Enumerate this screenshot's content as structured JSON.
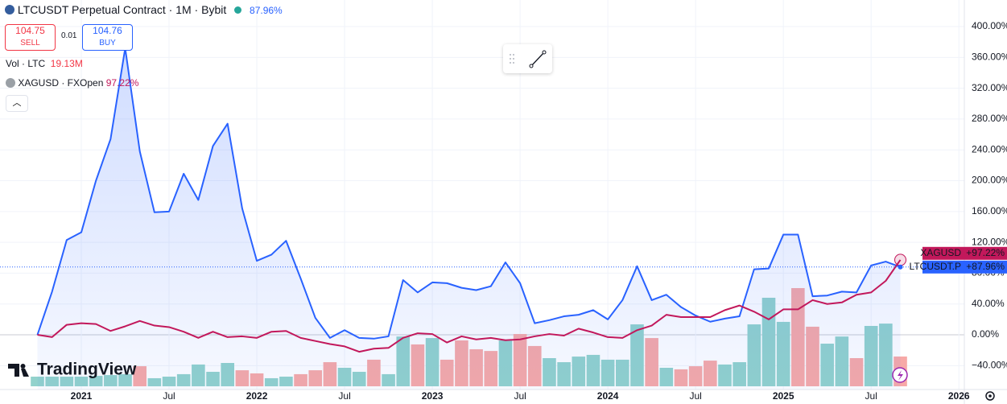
{
  "header": {
    "title": "LTCUSDT Perpetual Contract · 1M · Bybit",
    "change": "87.96%",
    "sell_price": "104.75",
    "sell": "SELL",
    "spread": "0.01",
    "buy_price": "104.76",
    "buy": "BUY",
    "volume_label": "Vol · LTC",
    "compare": "XAGUSD · FXOpen",
    "compare_change": "97.22%",
    "logo": "TradingView"
  },
  "chart_data": {
    "type": "line",
    "categories": [
      null,
      null,
      null,
      "2021",
      null,
      null,
      null,
      null,
      null,
      "Jul",
      null,
      null,
      null,
      null,
      null,
      "2022",
      null,
      null,
      null,
      null,
      null,
      "Jul",
      null,
      null,
      null,
      null,
      null,
      "2023",
      null,
      null,
      null,
      null,
      null,
      "Jul",
      null,
      null,
      null,
      null,
      null,
      "2024",
      null,
      null,
      null,
      null,
      null,
      "Jul",
      null,
      null,
      null,
      null,
      null,
      "2025",
      null,
      null,
      null,
      null,
      null,
      "Jul",
      null,
      null,
      null,
      null,
      null,
      "2026"
    ],
    "series": [
      {
        "name": "LTCUSDT.P",
        "color": "#2962ff",
        "area": true,
        "last_label": "+87.96%",
        "values": [
          0,
          56,
          123,
          133,
          200,
          254,
          372,
          238,
          159,
          160,
          209,
          175,
          245,
          274,
          164,
          96,
          104,
          122,
          73,
          22,
          -4,
          6,
          -4,
          -5,
          -2,
          71,
          55,
          68,
          67,
          61,
          58,
          63,
          94,
          67,
          15,
          19,
          24,
          26,
          32,
          20,
          45,
          89,
          45,
          52,
          36,
          25,
          17,
          21,
          24,
          85,
          86,
          130,
          130,
          50,
          51,
          56,
          55,
          90,
          95,
          87.96,
          null,
          null,
          null,
          null
        ]
      },
      {
        "name": "XAGUSD",
        "color": "#c2185b",
        "area": false,
        "last_label": "+97.22%",
        "values": [
          0,
          -3,
          13,
          15,
          14,
          5,
          11,
          18,
          12,
          10,
          4,
          -4,
          4,
          -3,
          -2,
          -4,
          4,
          5,
          -4,
          -8,
          -12,
          -15,
          -22,
          -18,
          -17,
          -4,
          2,
          1,
          -10,
          -2,
          -6,
          -4,
          -7,
          -6,
          -2,
          1,
          -1,
          8,
          3,
          -3,
          -4,
          6,
          12,
          26,
          23,
          23,
          23,
          32,
          38,
          30,
          20,
          33,
          33,
          45,
          40,
          42,
          52,
          55,
          70,
          97.22,
          null,
          null,
          null,
          null
        ]
      }
    ],
    "volume": {
      "name": "Vol · LTC",
      "last_label": "19.13M",
      "up_color": "#92d2cc",
      "down_color": "#f7a9a7",
      "values": [
        6.2,
        6.2,
        6.2,
        6.2,
        6.7,
        7.2,
        7.8,
        12.9,
        5.2,
        6.2,
        7.8,
        14,
        9.3,
        15,
        10.3,
        8.3,
        5.2,
        6.2,
        7.8,
        10.3,
        15.5,
        11.9,
        9.3,
        17.1,
        7.8,
        32,
        26.9,
        31,
        17.1,
        29.5,
        23.8,
        22.7,
        29.5,
        33.6,
        25.9,
        18.1,
        15.5,
        19.1,
        20.2,
        17.1,
        17.1,
        39.8,
        31,
        11.9,
        10.9,
        12.9,
        16.5,
        14,
        15.5,
        39.8,
        56.9,
        41.4,
        63.1,
        38.3,
        27.4,
        32,
        18.1,
        38.8,
        40.3,
        19.13,
        null,
        null,
        null,
        null
      ],
      "rising": [
        true,
        true,
        true,
        true,
        true,
        true,
        true,
        false,
        true,
        true,
        true,
        true,
        true,
        true,
        false,
        false,
        true,
        true,
        false,
        false,
        false,
        true,
        true,
        false,
        true,
        true,
        false,
        true,
        false,
        false,
        false,
        false,
        true,
        false,
        false,
        true,
        true,
        true,
        true,
        true,
        true,
        true,
        false,
        true,
        false,
        false,
        false,
        true,
        true,
        true,
        true,
        true,
        false,
        false,
        true,
        true,
        false,
        true,
        true,
        false,
        null,
        null,
        null,
        null
      ]
    },
    "ylim": [
      -71,
      434.5
    ],
    "yticks": [
      {
        "value": 400,
        "label": "400.00%"
      },
      {
        "value": 360,
        "label": "360.00%"
      },
      {
        "value": 320,
        "label": "320.00%"
      },
      {
        "value": 280,
        "label": "280.00%"
      },
      {
        "value": 240,
        "label": "240.00%"
      },
      {
        "value": 200,
        "label": "200.00%"
      },
      {
        "value": 160,
        "label": "160.00%"
      },
      {
        "value": 120,
        "label": "120.00%"
      },
      {
        "value": 80,
        "label": "80.00%"
      },
      {
        "value": 40,
        "label": "40.00%"
      },
      {
        "value": 0,
        "label": "0.00%"
      },
      {
        "value": -40,
        "label": "−40.00%"
      }
    ],
    "grid": true
  }
}
